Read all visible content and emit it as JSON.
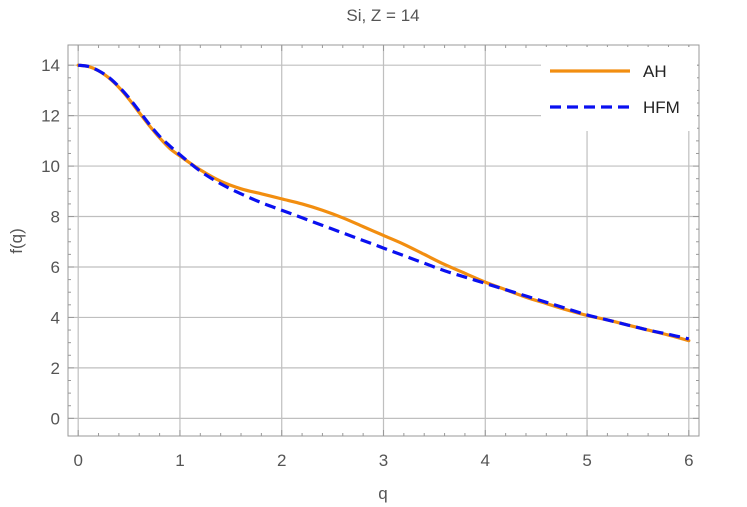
{
  "chart_data": {
    "type": "line",
    "title": "Si, Z = 14",
    "xlabel": "q",
    "ylabel": "f(q)",
    "xlim": [
      -0.1,
      6.1
    ],
    "ylim": [
      -0.7,
      14.8
    ],
    "xticks": [
      0,
      1,
      2,
      3,
      4,
      5,
      6
    ],
    "yticks": [
      0,
      2,
      4,
      6,
      8,
      10,
      12,
      14
    ],
    "grid": true,
    "legend": "top-right",
    "series": [
      {
        "name": "AH",
        "color": "#F28E10",
        "style": "solid",
        "x": [
          0,
          0.1,
          0.2,
          0.3,
          0.4,
          0.5,
          0.6,
          0.7,
          0.8,
          0.9,
          1.0,
          1.2,
          1.4,
          1.6,
          1.8,
          2.0,
          2.2,
          2.4,
          2.6,
          2.8,
          3.0,
          3.2,
          3.4,
          3.6,
          3.8,
          4.0,
          4.2,
          4.4,
          4.6,
          4.8,
          5.0,
          5.2,
          5.4,
          5.6,
          5.8,
          6.0
        ],
        "values": [
          14.0,
          13.95,
          13.78,
          13.5,
          13.12,
          12.65,
          12.12,
          11.6,
          11.12,
          10.7,
          10.4,
          9.85,
          9.4,
          9.1,
          8.9,
          8.7,
          8.5,
          8.25,
          7.95,
          7.6,
          7.25,
          6.9,
          6.5,
          6.1,
          5.75,
          5.4,
          5.1,
          4.8,
          4.55,
          4.3,
          4.08,
          3.9,
          3.7,
          3.5,
          3.3,
          3.08
        ]
      },
      {
        "name": "HFM",
        "color": "#0A10F0",
        "style": "dashed",
        "x": [
          0,
          0.1,
          0.2,
          0.3,
          0.4,
          0.5,
          0.6,
          0.7,
          0.8,
          0.9,
          1.0,
          1.2,
          1.4,
          1.6,
          1.8,
          2.0,
          2.2,
          2.4,
          2.6,
          2.8,
          3.0,
          3.2,
          3.4,
          3.6,
          3.8,
          4.0,
          4.2,
          4.4,
          4.6,
          4.8,
          5.0,
          5.2,
          5.4,
          5.6,
          5.8,
          6.0
        ],
        "values": [
          14.0,
          13.95,
          13.78,
          13.52,
          13.15,
          12.7,
          12.18,
          11.65,
          11.18,
          10.8,
          10.45,
          9.8,
          9.3,
          8.9,
          8.55,
          8.25,
          7.95,
          7.65,
          7.35,
          7.05,
          6.75,
          6.45,
          6.15,
          5.85,
          5.6,
          5.35,
          5.1,
          4.85,
          4.6,
          4.35,
          4.1,
          3.9,
          3.7,
          3.5,
          3.33,
          3.15
        ]
      }
    ]
  }
}
